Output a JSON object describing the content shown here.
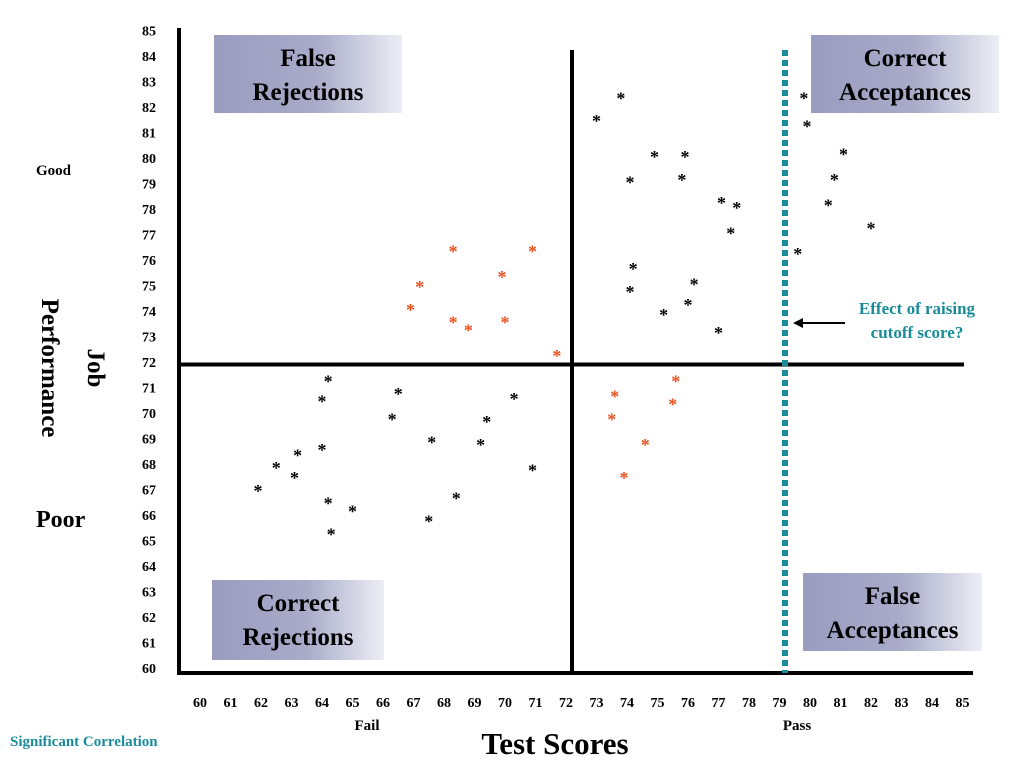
{
  "chart_data": {
    "type": "scatter",
    "title": "",
    "xlabel": "Test Scores",
    "ylabel": "Job Performance",
    "xlim": [
      60,
      85
    ],
    "ylim": [
      60,
      85
    ],
    "x_ticks": [
      "60",
      "61",
      "62",
      "63",
      "64",
      "65",
      "66",
      "67",
      "68",
      "69",
      "70",
      "71",
      "72",
      "73",
      "74",
      "75",
      "76",
      "77",
      "78",
      "79",
      "80",
      "81",
      "82",
      "83",
      "84",
      "85"
    ],
    "y_ticks": [
      "60",
      "61",
      "62",
      "63",
      "64",
      "65",
      "66",
      "67",
      "68",
      "69",
      "70",
      "71",
      "72",
      "73",
      "74",
      "75",
      "76",
      "77",
      "78",
      "79",
      "80",
      "81",
      "82",
      "83",
      "84",
      "85"
    ],
    "y_good_label": "Good",
    "y_poor_label": "Poor",
    "x_fail_label": "Fail",
    "x_pass_label": "Pass",
    "footnote": "Significant Correlation",
    "predictor_cutoff": 72,
    "criterion_cutoff": 71.9,
    "raised_cutoff": 79,
    "annotation": "Effect of raising cutoff score?",
    "quadrant_labels": {
      "top_left": "False Rejections",
      "top_right": "Correct Acceptances",
      "bottom_left": "Correct Rejections",
      "bottom_right": "False Acceptances"
    },
    "point_marker": "*",
    "colors": {
      "black": "#000000",
      "highlight": "#e8501e",
      "cutoff": "#1a8c99",
      "box": "#a9abc9"
    },
    "series": [
      {
        "color": "black",
        "points": [
          [
            73.0,
            81.6
          ],
          [
            73.8,
            82.5
          ],
          [
            74.1,
            79.2
          ],
          [
            74.9,
            80.2
          ],
          [
            75.9,
            80.2
          ],
          [
            75.8,
            79.3
          ],
          [
            77.1,
            78.4
          ],
          [
            77.6,
            78.2
          ],
          [
            77.4,
            77.2
          ],
          [
            74.2,
            75.8
          ],
          [
            74.1,
            74.9
          ],
          [
            75.2,
            74.0
          ],
          [
            76.2,
            75.2
          ],
          [
            76.0,
            74.4
          ],
          [
            77.0,
            73.3
          ],
          [
            79.8,
            82.5
          ],
          [
            79.9,
            81.4
          ],
          [
            81.1,
            80.3
          ],
          [
            80.8,
            79.3
          ],
          [
            80.6,
            78.3
          ],
          [
            82.0,
            77.4
          ],
          [
            79.6,
            76.4
          ],
          [
            64.2,
            71.4
          ],
          [
            64.0,
            70.6
          ],
          [
            66.5,
            70.9
          ],
          [
            66.3,
            69.9
          ],
          [
            70.3,
            70.7
          ],
          [
            69.4,
            69.8
          ],
          [
            63.2,
            68.5
          ],
          [
            64.0,
            68.7
          ],
          [
            62.5,
            68.0
          ],
          [
            63.1,
            67.6
          ],
          [
            61.9,
            67.1
          ],
          [
            67.6,
            69.0
          ],
          [
            69.2,
            68.9
          ],
          [
            70.9,
            67.9
          ],
          [
            64.2,
            66.6
          ],
          [
            65.0,
            66.3
          ],
          [
            64.3,
            65.4
          ],
          [
            67.5,
            65.9
          ],
          [
            68.4,
            66.8
          ]
        ]
      },
      {
        "color": "highlight",
        "points": [
          [
            68.3,
            76.5
          ],
          [
            70.9,
            76.5
          ],
          [
            69.9,
            75.5
          ],
          [
            67.2,
            75.1
          ],
          [
            66.9,
            74.2
          ],
          [
            68.3,
            73.7
          ],
          [
            68.8,
            73.4
          ],
          [
            70.0,
            73.7
          ],
          [
            71.7,
            72.4
          ],
          [
            73.6,
            70.8
          ],
          [
            75.6,
            71.4
          ],
          [
            73.5,
            69.9
          ],
          [
            75.5,
            70.5
          ],
          [
            74.6,
            68.9
          ],
          [
            73.9,
            67.6
          ]
        ]
      }
    ]
  }
}
